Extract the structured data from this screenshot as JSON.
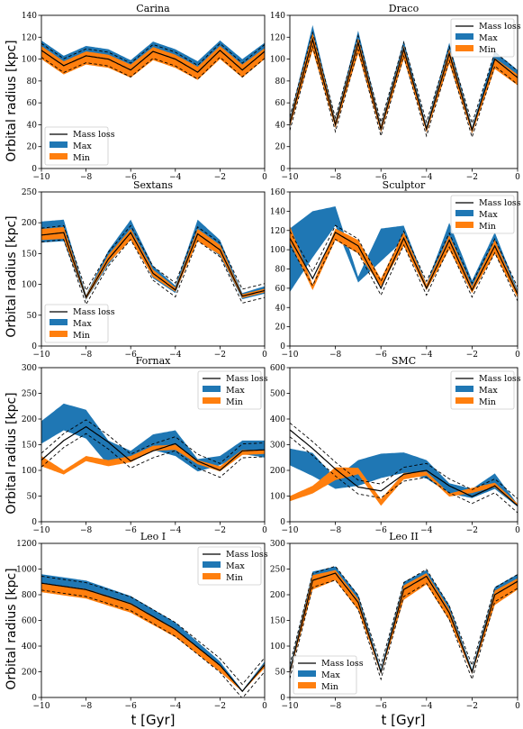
{
  "figure": {
    "ylabel": "Orbital radius [kpc]",
    "xlabel": "t [Gyr]"
  },
  "colors": {
    "max": "#1f77b4",
    "min": "#ff7f0e",
    "line": "#000000"
  },
  "chart_data": [
    {
      "type": "line",
      "title": "Carina",
      "xlim": [
        -10,
        0
      ],
      "ylim": [
        0,
        140
      ],
      "xticks": [
        -10,
        -8,
        -6,
        -4,
        -2,
        0
      ],
      "yticks": [
        0,
        20,
        40,
        60,
        80,
        100,
        120,
        140
      ],
      "legend": "lower-left",
      "legend_labels": [
        "Mass loss",
        "Max",
        "Min"
      ],
      "curve": {
        "period": 2.11,
        "phase0": 0.03,
        "r_min": 84,
        "r_max": 113
      },
      "series": [
        {
          "name": "Max",
          "x": [
            -10,
            -9,
            -8,
            -7,
            -6,
            -5,
            -4,
            -3,
            -2,
            -1,
            0
          ],
          "y_low": [
            103,
            89,
            98,
            95,
            86,
            102,
            95,
            84,
            103,
            86,
            103
          ],
          "y_high": [
            117,
            103,
            112,
            109,
            99,
            116,
            109,
            98,
            117,
            100,
            115
          ]
        },
        {
          "name": "Min",
          "x": [
            -10,
            -9,
            -8,
            -7,
            -6,
            -5,
            -4,
            -3,
            -2,
            -1,
            0
          ],
          "y_low": [
            100,
            86,
            95,
            92,
            83,
            99,
            92,
            81,
            100,
            83,
            100
          ],
          "y_high": [
            112,
            98,
            107,
            104,
            95,
            111,
            104,
            93,
            112,
            95,
            110
          ]
        },
        {
          "name": "Mass loss",
          "x": [
            -10,
            -9,
            -8,
            -7,
            -6,
            -5,
            -4,
            -3,
            -2,
            -1,
            0
          ],
          "y": [
            108,
            94,
            103,
            100,
            90,
            107,
            100,
            88,
            108,
            90,
            107
          ]
        }
      ]
    },
    {
      "type": "line",
      "title": "Draco",
      "xlim": [
        -10,
        0
      ],
      "ylim": [
        0,
        140
      ],
      "xticks": [
        -10,
        -8,
        -6,
        -4,
        -2,
        0
      ],
      "yticks": [
        0,
        20,
        40,
        60,
        80,
        100,
        120,
        140
      ],
      "legend": "top-right",
      "legend_labels": [
        "Mass loss",
        "Max",
        "Min"
      ],
      "curve": {
        "period": 2.02,
        "phase0": 0.3,
        "r_min": 33,
        "r_max": 122,
        "r_max_end": 100
      },
      "series": [
        {
          "name": "Max",
          "x": [
            -10,
            -9,
            -8,
            -7,
            -6,
            -5,
            -4,
            -3,
            -2,
            -1,
            0
          ],
          "y_low": [
            38,
            114,
            37,
            112,
            33,
            106,
            33,
            103,
            32,
            97,
            80
          ],
          "y_high": [
            46,
            131,
            44,
            126,
            40,
            117,
            39,
            115,
            38,
            107,
            90
          ]
        },
        {
          "name": "Min",
          "x": [
            -10,
            -9,
            -8,
            -7,
            -6,
            -5,
            -4,
            -3,
            -2,
            -1,
            0
          ],
          "y_low": [
            38,
            108,
            37,
            105,
            33,
            100,
            33,
            96,
            32,
            91,
            76
          ],
          "y_high": [
            44,
            124,
            43,
            119,
            39,
            112,
            38,
            109,
            37,
            101,
            86
          ]
        },
        {
          "name": "Mass loss",
          "x": [
            -10,
            -9,
            -8,
            -7,
            -6,
            -5,
            -4,
            -3,
            -2,
            -1,
            0
          ],
          "y": [
            41,
            118,
            40,
            115,
            36,
            109,
            36,
            105,
            35,
            100,
            83
          ]
        }
      ]
    },
    {
      "type": "line",
      "title": "Sextans",
      "xlim": [
        -10,
        0
      ],
      "ylim": [
        0,
        250
      ],
      "xticks": [
        -10,
        -8,
        -6,
        -4,
        -2,
        0
      ],
      "yticks": [
        0,
        50,
        100,
        150,
        200,
        250
      ],
      "legend": "lower-left",
      "legend_labels": [
        "Mass loss",
        "Max",
        "Min"
      ],
      "curve": {
        "period": 3.95,
        "phase0": 0.12,
        "r_min": 75,
        "r_max": 190
      },
      "series": [
        {
          "name": "Max",
          "x": [
            -10,
            -9,
            -8,
            -7,
            -6,
            -5,
            -4,
            -3,
            -2,
            -1,
            0
          ],
          "y_low": [
            168,
            170,
            75,
            132,
            178,
            110,
            86,
            174,
            146,
            76,
            85
          ],
          "y_high": [
            202,
            205,
            83,
            155,
            205,
            130,
            98,
            205,
            172,
            86,
            97
          ]
        },
        {
          "name": "Min",
          "x": [
            -10,
            -9,
            -8,
            -7,
            -6,
            -5,
            -4,
            -3,
            -2,
            -1,
            0
          ],
          "y_low": [
            172,
            174,
            76,
            135,
            172,
            112,
            88,
            170,
            148,
            78,
            87
          ],
          "y_high": [
            190,
            193,
            82,
            148,
            190,
            124,
            95,
            190,
            164,
            84,
            93
          ]
        },
        {
          "name": "Mass loss",
          "x": [
            -10,
            -9,
            -8,
            -7,
            -6,
            -5,
            -4,
            -3,
            -2,
            -1,
            0
          ],
          "y": [
            180,
            184,
            79,
            141,
            184,
            118,
            91,
            182,
            156,
            81,
            90
          ]
        }
      ]
    },
    {
      "type": "line",
      "title": "Sculptor",
      "xlim": [
        -10,
        0
      ],
      "ylim": [
        0,
        160
      ],
      "xticks": [
        -10,
        -8,
        -6,
        -4,
        -2,
        0
      ],
      "yticks": [
        0,
        20,
        40,
        60,
        80,
        100,
        120,
        140,
        160
      ],
      "legend": "top-right",
      "legend_labels": [
        "Mass loss",
        "Max",
        "Min"
      ],
      "curve": {
        "period": 2.25,
        "phase0": 0.35,
        "r_min": 60,
        "r_max": 115
      },
      "series": [
        {
          "name": "Max",
          "x": [
            -10,
            -9,
            -8,
            -7,
            -6,
            -5,
            -4,
            -3,
            -2,
            -1,
            0
          ],
          "y_low": [
            56,
            92,
            125,
            66,
            88,
            110,
            58,
            105,
            60,
            98,
            51
          ],
          "y_high": [
            122,
            140,
            145,
            72,
            122,
            125,
            64,
            128,
            68,
            118,
            58
          ]
        },
        {
          "name": "Min",
          "x": [
            -10,
            -9,
            -8,
            -7,
            -6,
            -5,
            -4,
            -3,
            -2,
            -1,
            0
          ],
          "y_low": [
            108,
            58,
            110,
            96,
            62,
            104,
            58,
            100,
            55,
            96,
            50
          ],
          "y_high": [
            125,
            64,
            122,
            110,
            70,
            118,
            64,
            115,
            62,
            110,
            56
          ]
        },
        {
          "name": "Mass loss",
          "x": [
            -10,
            -9,
            -8,
            -7,
            -6,
            -5,
            -4,
            -3,
            -2,
            -1,
            0
          ],
          "y": [
            112,
            70,
            118,
            104,
            60,
            112,
            60,
            110,
            58,
            104,
            54
          ]
        }
      ]
    },
    {
      "type": "line",
      "title": "Fornax",
      "xlim": [
        -10,
        0
      ],
      "ylim": [
        0,
        300
      ],
      "xticks": [
        -10,
        -8,
        -6,
        -4,
        -2,
        0
      ],
      "yticks": [
        0,
        50,
        100,
        150,
        200,
        250,
        300
      ],
      "legend": "top-right",
      "legend_labels": [
        "Mass loss",
        "Max",
        "Min"
      ],
      "curve": {
        "period": 3.6,
        "phase0": 0.55,
        "r_min": 100,
        "r_max": 180,
        "r_max_end": 145
      },
      "series": [
        {
          "name": "Max",
          "x": [
            -10,
            -9,
            -8,
            -7,
            -6,
            -5,
            -4,
            -3,
            -2,
            -1,
            0
          ],
          "y_low": [
            152,
            178,
            162,
            110,
            118,
            140,
            128,
            98,
            110,
            132,
            125
          ],
          "y_high": [
            196,
            230,
            218,
            158,
            138,
            170,
            178,
            122,
            128,
            158,
            158
          ]
        },
        {
          "name": "Min",
          "x": [
            -10,
            -9,
            -8,
            -7,
            -6,
            -5,
            -4,
            -3,
            -2,
            -1,
            0
          ],
          "y_low": [
            108,
            92,
            118,
            108,
            116,
            138,
            140,
            112,
            98,
            130,
            132
          ],
          "y_high": [
            128,
            100,
            128,
            120,
            128,
            148,
            150,
            120,
            108,
            140,
            140
          ]
        },
        {
          "name": "Mass loss",
          "x": [
            -10,
            -9,
            -8,
            -7,
            -6,
            -5,
            -4,
            -3,
            -2,
            -1,
            0
          ],
          "y": [
            120,
            158,
            185,
            155,
            118,
            138,
            152,
            118,
            100,
            138,
            140
          ]
        }
      ]
    },
    {
      "type": "line",
      "title": "SMC",
      "xlim": [
        -10,
        0
      ],
      "ylim": [
        0,
        600
      ],
      "xticks": [
        -10,
        -8,
        -6,
        -4,
        -2,
        0
      ],
      "yticks": [
        0,
        100,
        200,
        300,
        400,
        500,
        600
      ],
      "legend": "top-right",
      "legend_labels": [
        "Mass loss",
        "Max",
        "Min"
      ],
      "curve": {
        "period": 4.0,
        "phase0": 0.0,
        "r_min": 70,
        "r_max": 360,
        "r_max_end": 140
      },
      "series": [
        {
          "name": "Max",
          "x": [
            -10,
            -9,
            -8,
            -7,
            -6,
            -5,
            -4,
            -3,
            -2,
            -1,
            0
          ],
          "y_low": [
            220,
            178,
            128,
            140,
            170,
            190,
            168,
            110,
            92,
            128,
            58
          ],
          "y_high": [
            285,
            268,
            170,
            240,
            265,
            270,
            240,
            150,
            128,
            188,
            68
          ]
        },
        {
          "name": "Min",
          "x": [
            -10,
            -9,
            -8,
            -7,
            -6,
            -5,
            -4,
            -3,
            -2,
            -1,
            0
          ],
          "y_low": [
            80,
            110,
            162,
            185,
            62,
            165,
            180,
            98,
            112,
            135,
            60
          ],
          "y_high": [
            100,
            140,
            212,
            210,
            88,
            190,
            195,
            110,
            132,
            152,
            70
          ]
        },
        {
          "name": "Mass loss",
          "x": [
            -10,
            -9,
            -8,
            -7,
            -6,
            -5,
            -4,
            -3,
            -2,
            -1,
            0
          ],
          "y": [
            358,
            285,
            205,
            135,
            120,
            185,
            200,
            140,
            98,
            140,
            62
          ]
        }
      ]
    },
    {
      "type": "line",
      "title": "Leo I",
      "xlim": [
        -10,
        0
      ],
      "ylim": [
        0,
        1200
      ],
      "xticks": [
        -10,
        -8,
        -6,
        -4,
        -2,
        0
      ],
      "yticks": [
        0,
        200,
        400,
        600,
        800,
        1000,
        1200
      ],
      "legend": "top-right",
      "legend_labels": [
        "Mass loss",
        "Max",
        "Min"
      ],
      "curve": {
        "t_peri": -1.0,
        "r_start": 890,
        "r_peri": 45,
        "r_end": 260
      },
      "series": [
        {
          "name": "Max",
          "x": [
            -10,
            -8,
            -6,
            -4,
            -2,
            -1,
            0
          ],
          "y_low": [
            880,
            830,
            720,
            520,
            240,
            48,
            245
          ],
          "y_high": [
            960,
            910,
            790,
            585,
            280,
            55,
            280
          ]
        },
        {
          "name": "Min",
          "x": [
            -10,
            -8,
            -6,
            -4,
            -2,
            -1,
            0
          ],
          "y_low": [
            820,
            770,
            660,
            470,
            200,
            45,
            230
          ],
          "y_high": [
            890,
            845,
            735,
            535,
            250,
            52,
            265
          ]
        },
        {
          "name": "Mass loss",
          "x": [
            -10,
            -8,
            -6,
            -4,
            -2,
            -1,
            0
          ],
          "y": [
            890,
            840,
            730,
            530,
            250,
            48,
            255
          ]
        }
      ]
    },
    {
      "type": "line",
      "title": "Leo II",
      "xlim": [
        -10,
        0
      ],
      "ylim": [
        0,
        300
      ],
      "xticks": [
        -10,
        -8,
        -6,
        -4,
        -2,
        0
      ],
      "yticks": [
        0,
        50,
        100,
        150,
        200,
        250,
        300
      ],
      "legend": "lower-left",
      "legend_labels": [
        "Mass loss",
        "Max",
        "Min"
      ],
      "curve": {
        "period": 4.1,
        "t_peri": -5.95,
        "r_min": 45,
        "r_max": 240
      },
      "series": [
        {
          "name": "Max",
          "x": [
            -10,
            -9,
            -8,
            -7,
            -6,
            -5,
            -4,
            -3,
            -2,
            -1,
            0
          ],
          "y_low": [
            48,
            215,
            235,
            175,
            48,
            195,
            225,
            155,
            48,
            185,
            215
          ],
          "y_high": [
            58,
            245,
            255,
            200,
            55,
            225,
            248,
            180,
            55,
            215,
            240
          ]
        },
        {
          "name": "Min",
          "x": [
            -10,
            -9,
            -8,
            -7,
            -6,
            -5,
            -4,
            -3,
            -2,
            -1,
            0
          ],
          "y_low": [
            46,
            210,
            228,
            170,
            46,
            190,
            220,
            150,
            46,
            180,
            210
          ],
          "y_high": [
            55,
            238,
            248,
            192,
            52,
            218,
            242,
            172,
            52,
            208,
            232
          ]
        },
        {
          "name": "Mass loss",
          "x": [
            -10,
            -9,
            -8,
            -7,
            -6,
            -5,
            -4,
            -3,
            -2,
            -1,
            0
          ],
          "y": [
            50,
            228,
            242,
            185,
            49,
            210,
            236,
            165,
            49,
            200,
            226
          ]
        }
      ]
    }
  ]
}
